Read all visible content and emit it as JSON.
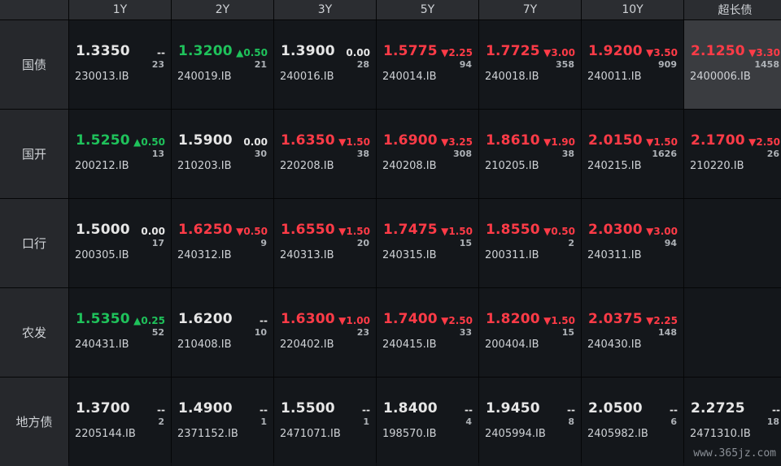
{
  "columns": [
    "1Y",
    "2Y",
    "3Y",
    "5Y",
    "7Y",
    "10Y",
    "超长债"
  ],
  "rows": [
    {
      "label": "国债",
      "cells": [
        {
          "yield": "1.3350",
          "change": "--",
          "dir": "flat",
          "volume": "23",
          "code": "230013.IB"
        },
        {
          "yield": "1.3200",
          "change": "▲0.50",
          "dir": "down",
          "volume": "21",
          "code": "240019.IB"
        },
        {
          "yield": "1.3900",
          "change": "0.00",
          "dir": "flat",
          "volume": "28",
          "code": "240016.IB"
        },
        {
          "yield": "1.5775",
          "change": "▼2.25",
          "dir": "up",
          "volume": "94",
          "code": "240014.IB"
        },
        {
          "yield": "1.7725",
          "change": "▼3.00",
          "dir": "up",
          "volume": "358",
          "code": "240018.IB"
        },
        {
          "yield": "1.9200",
          "change": "▼3.50",
          "dir": "up",
          "volume": "909",
          "code": "240011.IB"
        },
        {
          "yield": "2.1250",
          "change": "▼3.30",
          "dir": "up",
          "volume": "1458",
          "code": "2400006.IB",
          "active": true
        }
      ]
    },
    {
      "label": "国开",
      "cells": [
        {
          "yield": "1.5250",
          "change": "▲0.50",
          "dir": "down",
          "volume": "13",
          "code": "200212.IB"
        },
        {
          "yield": "1.5900",
          "change": "0.00",
          "dir": "flat",
          "volume": "30",
          "code": "210203.IB"
        },
        {
          "yield": "1.6350",
          "change": "▼1.50",
          "dir": "up",
          "volume": "38",
          "code": "220208.IB"
        },
        {
          "yield": "1.6900",
          "change": "▼3.25",
          "dir": "up",
          "volume": "308",
          "code": "240208.IB"
        },
        {
          "yield": "1.8610",
          "change": "▼1.90",
          "dir": "up",
          "volume": "38",
          "code": "210205.IB"
        },
        {
          "yield": "2.0150",
          "change": "▼1.50",
          "dir": "up",
          "volume": "1626",
          "code": "240215.IB"
        },
        {
          "yield": "2.1700",
          "change": "▼2.50",
          "dir": "up",
          "volume": "26",
          "code": "210220.IB"
        }
      ]
    },
    {
      "label": "口行",
      "cells": [
        {
          "yield": "1.5000",
          "change": "0.00",
          "dir": "flat",
          "volume": "17",
          "code": "200305.IB"
        },
        {
          "yield": "1.6250",
          "change": "▼0.50",
          "dir": "up",
          "volume": "9",
          "code": "240312.IB"
        },
        {
          "yield": "1.6550",
          "change": "▼1.50",
          "dir": "up",
          "volume": "20",
          "code": "240313.IB"
        },
        {
          "yield": "1.7475",
          "change": "▼1.50",
          "dir": "up",
          "volume": "15",
          "code": "240315.IB"
        },
        {
          "yield": "1.8550",
          "change": "▼0.50",
          "dir": "up",
          "volume": "2",
          "code": "200311.IB"
        },
        {
          "yield": "2.0300",
          "change": "▼3.00",
          "dir": "up",
          "volume": "94",
          "code": "240311.IB"
        },
        null
      ]
    },
    {
      "label": "农发",
      "cells": [
        {
          "yield": "1.5350",
          "change": "▲0.25",
          "dir": "down",
          "volume": "52",
          "code": "240431.IB"
        },
        {
          "yield": "1.6200",
          "change": "--",
          "dir": "flat",
          "volume": "10",
          "code": "210408.IB"
        },
        {
          "yield": "1.6300",
          "change": "▼1.00",
          "dir": "up",
          "volume": "23",
          "code": "220402.IB"
        },
        {
          "yield": "1.7400",
          "change": "▼2.50",
          "dir": "up",
          "volume": "33",
          "code": "240415.IB"
        },
        {
          "yield": "1.8200",
          "change": "▼1.50",
          "dir": "up",
          "volume": "15",
          "code": "200404.IB"
        },
        {
          "yield": "2.0375",
          "change": "▼2.25",
          "dir": "up",
          "volume": "148",
          "code": "240430.IB"
        },
        null
      ]
    },
    {
      "label": "地方债",
      "cells": [
        {
          "yield": "1.3700",
          "change": "--",
          "dir": "flat",
          "volume": "2",
          "code": "2205144.IB"
        },
        {
          "yield": "1.4900",
          "change": "--",
          "dir": "flat",
          "volume": "1",
          "code": "2371152.IB"
        },
        {
          "yield": "1.5500",
          "change": "--",
          "dir": "flat",
          "volume": "1",
          "code": "2471071.IB"
        },
        {
          "yield": "1.8400",
          "change": "--",
          "dir": "flat",
          "volume": "4",
          "code": "198570.IB"
        },
        {
          "yield": "1.9450",
          "change": "--",
          "dir": "flat",
          "volume": "8",
          "code": "2405994.IB"
        },
        {
          "yield": "2.0500",
          "change": "--",
          "dir": "flat",
          "volume": "6",
          "code": "2405982.IB"
        },
        {
          "yield": "2.2725",
          "change": "--",
          "dir": "flat",
          "volume": "18",
          "code": "2471310.IB"
        }
      ]
    }
  ],
  "colors": {
    "up": "#ff3b47",
    "down": "#1fc25b",
    "flat": "#e6e6e6",
    "active_bg": "#3a3c40"
  },
  "watermark": "www.365jz.com"
}
